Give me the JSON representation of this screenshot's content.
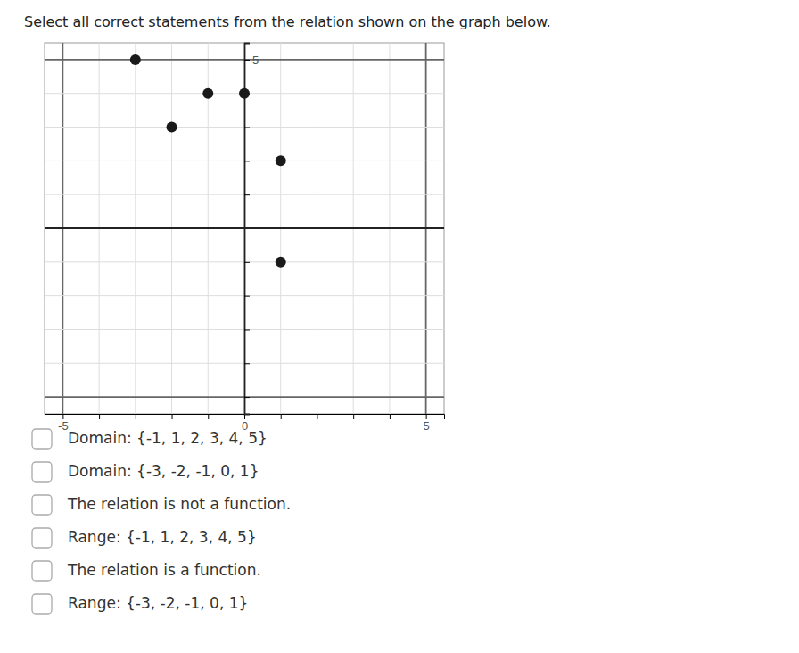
{
  "chart_data": {
    "type": "scatter",
    "title": "Select all correct statements from the relation shown on the graph below.",
    "x": [
      -3,
      -2,
      -1,
      0,
      1,
      1
    ],
    "values": [
      5,
      3,
      4,
      4,
      2,
      -1
    ],
    "color": "#1a1a1a",
    "xlim": [
      -5.5,
      5.5
    ],
    "ylim": [
      -5.5,
      5.5
    ],
    "xticks": [
      -5,
      {
        "value": -4,
        "label": null
      },
      {
        "value": -3,
        "label": null
      },
      {
        "value": -2,
        "label": null
      },
      {
        "value": -1,
        "label": null
      },
      0,
      {
        "value": 1,
        "label": null
      },
      {
        "value": 2,
        "label": null
      },
      {
        "value": 3,
        "label": null
      },
      {
        "value": 4,
        "label": null
      },
      5
    ],
    "yticks": [
      {
        "value": -5,
        "label": null
      },
      {
        "value": -4,
        "label": null
      },
      {
        "value": -3,
        "label": null
      },
      {
        "value": -2,
        "label": null
      },
      {
        "value": -1,
        "label": null
      },
      {
        "value": 0,
        "label": null
      },
      {
        "value": 1,
        "label": null
      },
      {
        "value": 2,
        "label": null
      },
      {
        "value": 3,
        "label": null
      },
      {
        "value": 4,
        "label": null
      },
      5
    ],
    "grid": true,
    "annotations": [
      "Domain: {-1, 1, 2, 3, 4, 5}",
      "Domain: {-3, -2, -1, 0, 1}",
      "The relation is not a function.",
      "Range: {-1, 1, 2, 3, 4, 5}",
      "The relation is a function.",
      "Range: {-3, -2, -1, 0, 1}"
    ]
  }
}
